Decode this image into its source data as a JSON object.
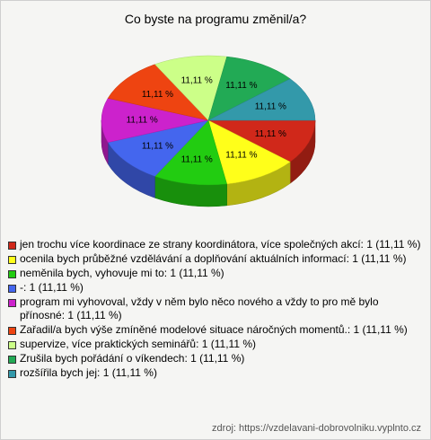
{
  "chart_data": {
    "type": "pie",
    "title": "Co byste na programu změnil/a?",
    "categories": [
      "jen trochu více koordinace ze strany koordinátora, více společných akcí: 1 (11,11 %)",
      "ocenila bych průběžné vzdělávání a doplňování aktuálních informací: 1 (11,11 %)",
      "neměnila bych, vyhovuje mi to: 1 (11,11 %)",
      "-: 1 (11,11 %)",
      "program mi vyhovoval, vždy v něm bylo něco nového a vždy to pro mě bylo přínosné: 1 (11,11 %)",
      "Zařadil/a bych výše zmíněné modelové situace náročných momentů.: 1 (11,11 %)",
      "supervize, více praktických seminářů: 1 (11,11 %)",
      "Zrušila bych pořádání o víkendech: 1 (11,11 %)",
      "rozšířila bych jej: 1 (11,11 %)"
    ],
    "values": [
      11.11,
      11.11,
      11.11,
      11.11,
      11.11,
      11.11,
      11.11,
      11.11,
      11.11
    ],
    "value_labels": [
      "11,11 %",
      "11,11 %",
      "11,11 %",
      "11,11 %",
      "11,11 %",
      "11,11 %",
      "11,11 %",
      "11,11 %",
      "11,11 %"
    ],
    "colors": [
      "#d0281a",
      "#ffff1a",
      "#22cc11",
      "#4466ee",
      "#cc22cc",
      "#ee4411",
      "#ccff88",
      "#22aa55",
      "#3399aa"
    ],
    "source": "zdroj: https://vzdelavani-dobrovolniku.vyplnto.cz"
  }
}
